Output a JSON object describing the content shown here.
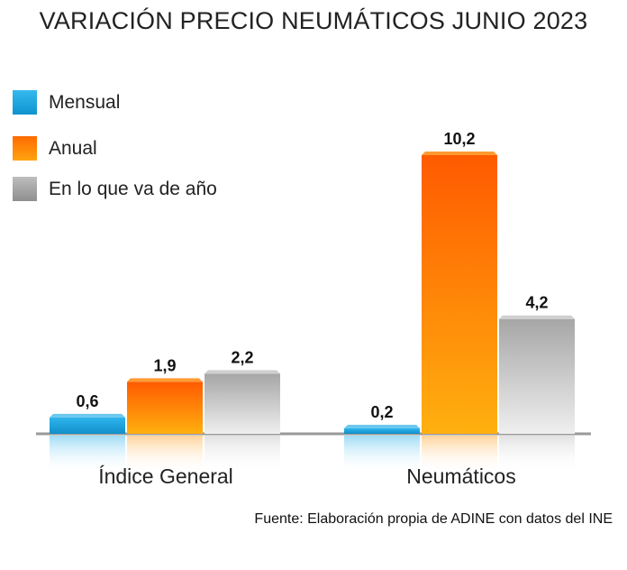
{
  "chart_data": {
    "type": "bar",
    "title": "VARIACIÓN PRECIO NEUMÁTICOS JUNIO 2023",
    "categories": [
      "Índice General",
      "Neumáticos"
    ],
    "series": [
      {
        "name": "Mensual",
        "values": [
          0.6,
          0.2
        ],
        "labels": [
          "0,6",
          "0,2"
        ],
        "color": "#1aa7e0"
      },
      {
        "name": "Anual",
        "values": [
          1.9,
          10.2
        ],
        "labels": [
          "1,9",
          "10,2"
        ],
        "color": "#ff8c00"
      },
      {
        "name": "En lo que va de año",
        "values": [
          2.2,
          4.2
        ],
        "labels": [
          "2,2",
          "4,2"
        ],
        "color": "#a8a8a8"
      }
    ],
    "ylim": [
      0,
      10.2
    ],
    "grid": false,
    "legend_position": "top-left",
    "source": "Fuente: Elaboración propia de ADINE con datos del INE"
  }
}
